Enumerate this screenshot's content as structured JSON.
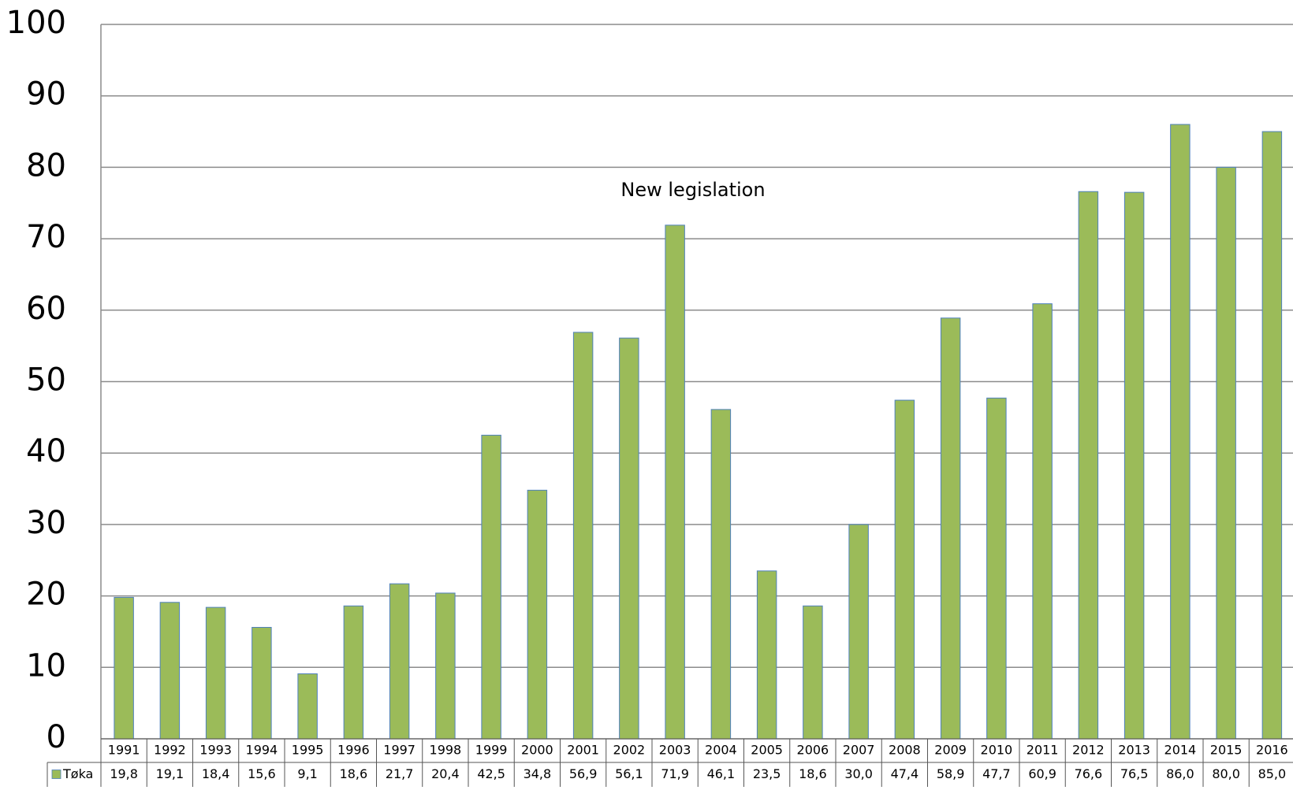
{
  "chart_data": {
    "type": "bar",
    "annotations": [
      {
        "text": "New legislation"
      }
    ],
    "categories": [
      "1991",
      "1992",
      "1993",
      "1994",
      "1995",
      "1996",
      "1997",
      "1998",
      "1999",
      "2000",
      "2001",
      "2002",
      "2003",
      "2004",
      "2005",
      "2006",
      "2007",
      "2008",
      "2009",
      "2010",
      "2011",
      "2012",
      "2013",
      "2014",
      "2015",
      "2016"
    ],
    "series": [
      {
        "name": "Tøka",
        "color": "#9bbb59",
        "values": [
          19.8,
          19.1,
          18.4,
          15.6,
          9.1,
          18.6,
          21.7,
          20.4,
          42.5,
          34.8,
          56.9,
          56.1,
          71.9,
          46.1,
          23.5,
          18.6,
          30.0,
          47.4,
          58.9,
          47.7,
          60.9,
          76.6,
          76.5,
          86.0,
          80.0,
          85.0
        ],
        "value_labels": [
          "19,8",
          "19,1",
          "18,4",
          "15,6",
          "9,1",
          "18,6",
          "21,7",
          "20,4",
          "42,5",
          "34,8",
          "56,9",
          "56,1",
          "71,9",
          "46,1",
          "23,5",
          "18,6",
          "30,0",
          "47,4",
          "58,9",
          "47,7",
          "60,9",
          "76,6",
          "76,5",
          "86,0",
          "80,0",
          "85,0"
        ]
      }
    ],
    "ylim": [
      0,
      100
    ],
    "yticks": [
      0,
      10,
      20,
      30,
      40,
      50,
      60,
      70,
      80,
      90,
      100
    ],
    "grid": true
  }
}
